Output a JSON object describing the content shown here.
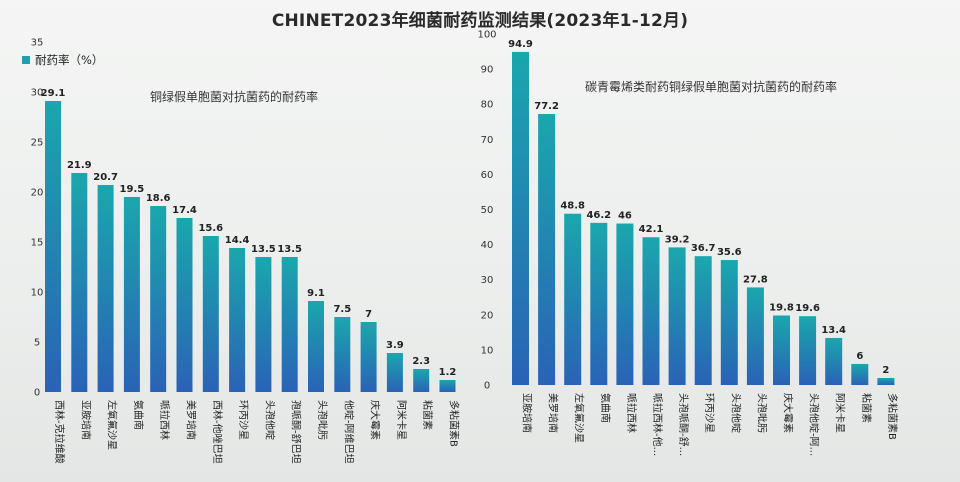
{
  "page_title": "CHINET2023年细菌耐药监测结果(2023年1-12月)",
  "colors": {
    "bar_top": "#1aa7ad",
    "bar_bottom": "#2a62b6",
    "legend": "#1f9fb0"
  },
  "chart_data": [
    {
      "type": "bar",
      "title": "铜绿假单胞菌对抗菌药的耐药率",
      "legend": "耐药率（%）",
      "ylim": [
        0,
        35
      ],
      "yticks": [
        0,
        5,
        10,
        15,
        20,
        25,
        30,
        35
      ],
      "categories": [
        "西林-克拉维酸",
        "亚胺培南",
        "左氧氟沙星",
        "氨曲南",
        "哌拉西林",
        "美罗培南",
        "西林-他唑巴坦",
        "环丙沙星",
        "头孢他啶",
        "孢哌酮-舒巴坦",
        "头孢吡肟",
        "他啶-阿维巴坦",
        "庆大霉素",
        "阿米卡星",
        "粘菌素",
        "多粘菌素B"
      ],
      "values": [
        29.1,
        21.9,
        20.7,
        19.5,
        18.6,
        17.4,
        15.6,
        14.4,
        13.5,
        13.5,
        9.1,
        7.5,
        7,
        3.9,
        2.3,
        1.2
      ],
      "grid": false
    },
    {
      "type": "bar",
      "title": "碳青霉烯类耐药铜绿假单胞菌对抗菌药的耐药率",
      "ylim": [
        0,
        100
      ],
      "yticks": [
        0,
        10,
        20,
        30,
        40,
        50,
        60,
        70,
        80,
        90,
        100
      ],
      "categories": [
        "亚胺培南",
        "美罗培南",
        "左氧氟沙星",
        "氨曲南",
        "哌拉西林",
        "哌拉西林-他...",
        "头孢哌酮-舒...",
        "环丙沙星",
        "头孢他啶",
        "头孢吡肟",
        "庆大霉素",
        "头孢他啶-阿...",
        "阿米卡星",
        "粘菌素",
        "多粘菌素B"
      ],
      "values": [
        94.9,
        77.2,
        48.8,
        46.2,
        46,
        42.1,
        39.2,
        36.7,
        35.6,
        27.8,
        19.8,
        19.6,
        13.4,
        6,
        2
      ],
      "grid": false
    }
  ]
}
